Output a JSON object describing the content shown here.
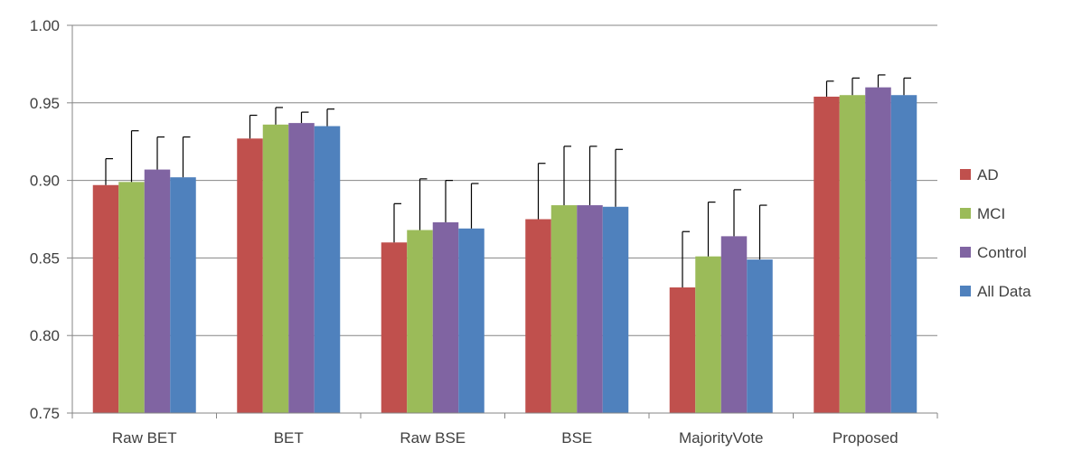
{
  "chart_data": {
    "type": "bar",
    "title": "",
    "xlabel": "",
    "ylabel": "",
    "categories": [
      "Raw BET",
      "BET",
      "Raw BSE",
      "BSE",
      "MajorityVote",
      "Proposed"
    ],
    "ylim": [
      0.75,
      1.0
    ],
    "yticks": [
      "0.75",
      "0.80",
      "0.85",
      "0.90",
      "0.95",
      "1.00"
    ],
    "grid": "horizontal",
    "legend_position": "right",
    "series": [
      {
        "name": "AD",
        "color": "#c0504d",
        "values": [
          0.897,
          0.927,
          0.86,
          0.875,
          0.831,
          0.954
        ],
        "errors": [
          0.017,
          0.015,
          0.025,
          0.036,
          0.036,
          0.01
        ]
      },
      {
        "name": "MCI",
        "color": "#9bbb59",
        "values": [
          0.899,
          0.936,
          0.868,
          0.884,
          0.851,
          0.955
        ],
        "errors": [
          0.033,
          0.011,
          0.033,
          0.038,
          0.035,
          0.011
        ]
      },
      {
        "name": "Control",
        "color": "#8064a2",
        "values": [
          0.907,
          0.937,
          0.873,
          0.884,
          0.864,
          0.96
        ],
        "errors": [
          0.021,
          0.007,
          0.027,
          0.038,
          0.03,
          0.008
        ]
      },
      {
        "name": "All Data",
        "color": "#4f81bd",
        "values": [
          0.902,
          0.935,
          0.869,
          0.883,
          0.849,
          0.955
        ],
        "errors": [
          0.026,
          0.011,
          0.029,
          0.037,
          0.035,
          0.011
        ]
      }
    ]
  }
}
